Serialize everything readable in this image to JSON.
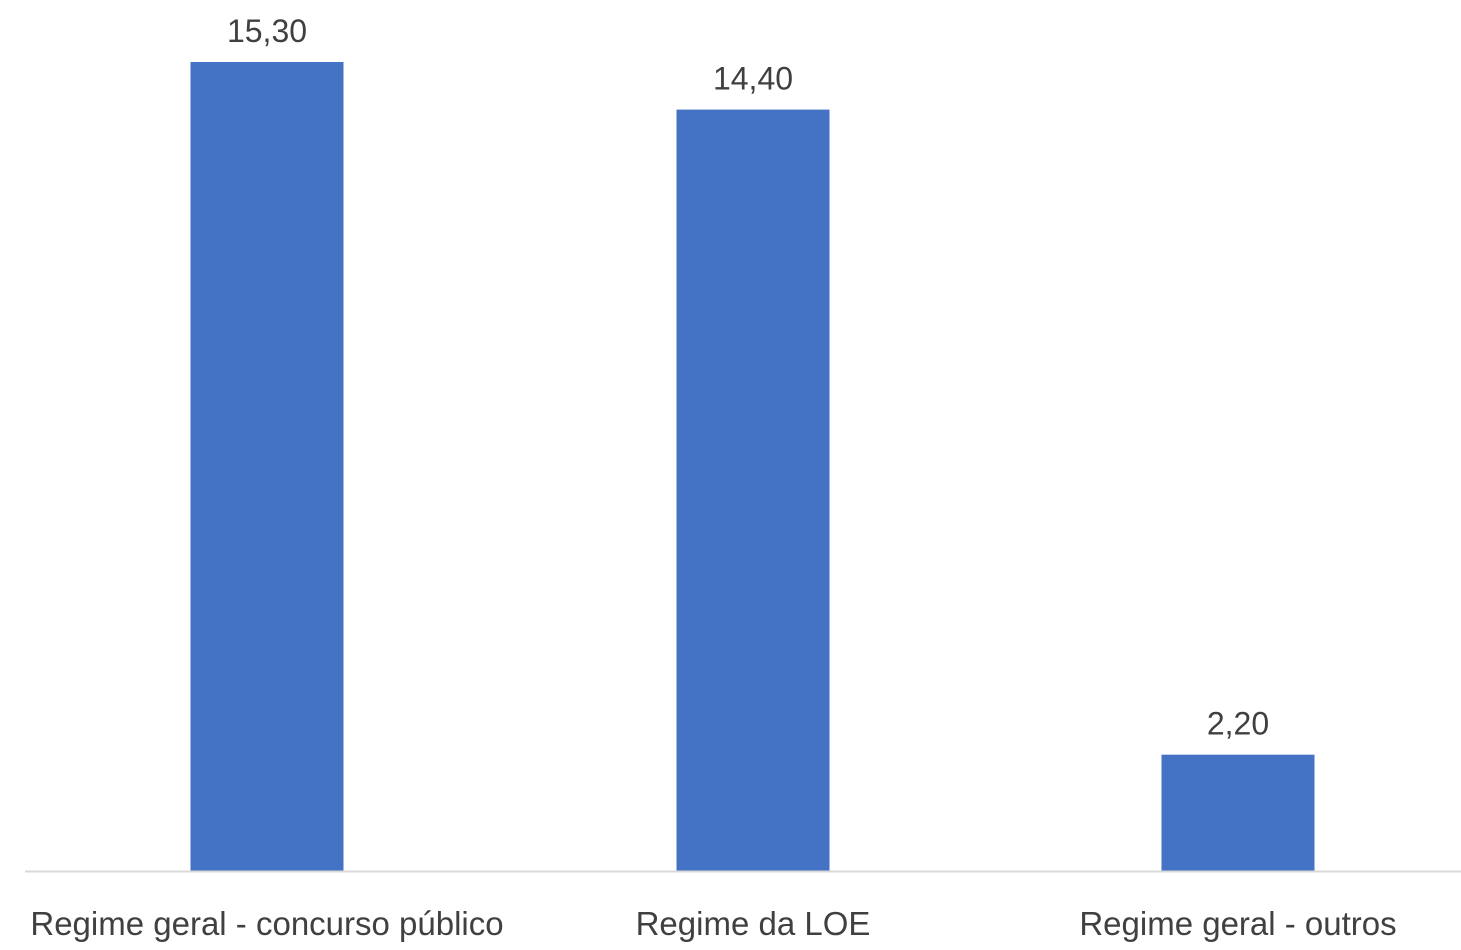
{
  "chart_data": {
    "type": "bar",
    "categories": [
      "Regime geral - concurso público",
      "Regime da LOE",
      "Regime geral - outros"
    ],
    "values": [
      15.3,
      14.4,
      2.2
    ],
    "data_labels": [
      "15,30",
      "14,40",
      "2,20"
    ],
    "title": "",
    "xlabel": "",
    "ylabel": "",
    "ylim": [
      0,
      15.3
    ],
    "grid": false,
    "legend": "none",
    "colors": {
      "bar": "#4472C4",
      "axis": "#D9D9D9",
      "text": "#404040"
    }
  }
}
